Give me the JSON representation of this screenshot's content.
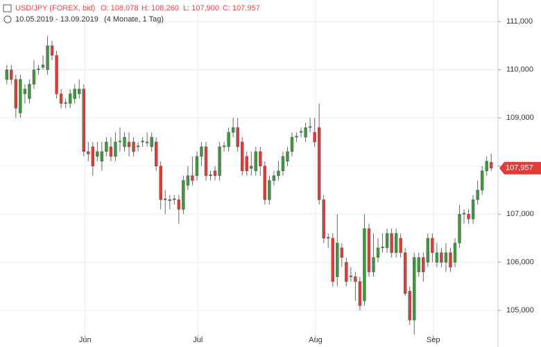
{
  "chart_data": {
    "type": "candlestick",
    "title": "USD/JPY (FOREX, bid)",
    "ohlc_labels": [
      "O: 108,078",
      "H: 108,260",
      "L: 107,900",
      "C: 107,957"
    ],
    "date_range": "10.05.2019 - 13.09.2019",
    "duration": "(4 Monate, 1 Tag)",
    "open": [
      109.8,
      110.0,
      109.8,
      109.1,
      109.5,
      109.4,
      109.7,
      110.0,
      110.05,
      110.0,
      110.5,
      110.3,
      109.5,
      109.3,
      109.3,
      109.4,
      109.5,
      109.6,
      108.3,
      108.4,
      108.2,
      108.1,
      108.3,
      108.4,
      108.2,
      108.5,
      108.4,
      108.5,
      108.5,
      108.4,
      108.5,
      108.5,
      108.4,
      108.5,
      108.0,
      107.3,
      107.3,
      107.3,
      107.3,
      107.1,
      107.6,
      107.8,
      107.8,
      108.2,
      108.4,
      107.8,
      107.9,
      107.8,
      108.4,
      108.4,
      108.7,
      108.8,
      108.5,
      108.2,
      107.95,
      107.9,
      108.3,
      108.0,
      107.3,
      107.7,
      107.8,
      107.9,
      108.1,
      108.3,
      108.6,
      108.7,
      108.6,
      108.8,
      108.7,
      108.8,
      107.3,
      106.5,
      106.5,
      105.7,
      106.3,
      106.0,
      105.7,
      105.7,
      105.6,
      105.2,
      106.7,
      105.8,
      106.1,
      106.3,
      106.3,
      106.6,
      106.2,
      106.5,
      106.2,
      105.4,
      104.8,
      105.8,
      106.1,
      106.0,
      106.5,
      106.0,
      106.2,
      106.0,
      106.2,
      106.0,
      106.4,
      107.0,
      107.0,
      106.9,
      107.3,
      107.5,
      107.9,
      108.078
    ],
    "high": [
      110.1,
      110.1,
      109.9,
      109.9,
      109.7,
      109.8,
      110.2,
      110.1,
      110.3,
      110.7,
      110.6,
      110.4,
      109.6,
      109.4,
      109.6,
      109.7,
      109.8,
      109.7,
      108.5,
      108.5,
      108.5,
      108.5,
      108.6,
      108.6,
      108.7,
      108.8,
      108.7,
      108.7,
      108.6,
      108.5,
      108.6,
      108.7,
      108.7,
      108.6,
      108.1,
      107.5,
      107.4,
      107.4,
      107.4,
      107.8,
      108.0,
      108.2,
      108.3,
      108.5,
      108.5,
      107.9,
      108.0,
      108.5,
      108.5,
      108.8,
      109.0,
      109.0,
      108.6,
      108.3,
      108.3,
      108.4,
      108.4,
      108.1,
      107.8,
      107.9,
      108.1,
      108.3,
      108.4,
      108.7,
      108.7,
      108.8,
      108.9,
      109.0,
      109.0,
      109.3,
      107.4,
      106.6,
      106.6,
      107.0,
      106.4,
      106.1,
      105.9,
      105.8,
      105.7,
      107.0,
      106.8,
      106.6,
      106.5,
      106.6,
      106.7,
      106.7,
      106.7,
      106.6,
      106.3,
      105.5,
      106.2,
      106.2,
      106.2,
      106.6,
      106.6,
      106.4,
      106.3,
      106.4,
      106.3,
      106.5,
      107.2,
      107.1,
      107.1,
      107.4,
      107.7,
      108.0,
      108.2,
      108.26
    ],
    "low": [
      109.7,
      109.7,
      109.0,
      109.0,
      109.3,
      109.3,
      109.6,
      109.9,
      110.0,
      109.9,
      110.2,
      109.4,
      109.2,
      109.2,
      109.2,
      109.3,
      109.4,
      108.2,
      108.1,
      107.8,
      108.1,
      107.9,
      108.2,
      108.1,
      108.1,
      108.3,
      108.3,
      108.2,
      108.2,
      108.3,
      108.4,
      108.4,
      108.3,
      107.9,
      107.1,
      107.0,
      107.1,
      107.2,
      106.8,
      107.0,
      107.5,
      107.6,
      107.7,
      108.0,
      107.7,
      107.7,
      107.7,
      107.7,
      108.3,
      108.3,
      108.6,
      108.3,
      107.8,
      107.8,
      107.8,
      107.8,
      107.8,
      107.2,
      107.2,
      107.6,
      107.7,
      107.8,
      108.0,
      108.2,
      108.5,
      108.6,
      108.5,
      108.7,
      108.4,
      107.2,
      106.4,
      106.3,
      105.5,
      105.5,
      105.9,
      105.5,
      105.6,
      105.2,
      105.0,
      105.1,
      105.7,
      105.7,
      106.0,
      106.2,
      106.2,
      106.1,
      106.1,
      106.1,
      105.3,
      104.7,
      104.5,
      105.7,
      105.6,
      105.9,
      106.0,
      105.9,
      105.9,
      105.8,
      105.8,
      105.9,
      106.3,
      106.8,
      106.8,
      106.8,
      107.2,
      107.4,
      107.8,
      107.9
    ],
    "close": [
      110.0,
      109.8,
      109.2,
      109.8,
      109.6,
      109.7,
      110.0,
      110.02,
      110.1,
      110.5,
      110.3,
      109.5,
      109.3,
      109.32,
      109.5,
      109.6,
      109.6,
      108.3,
      108.25,
      108.0,
      108.3,
      108.3,
      108.5,
      108.2,
      108.5,
      108.52,
      108.6,
      108.4,
      108.3,
      108.42,
      108.52,
      108.48,
      108.6,
      108.0,
      107.3,
      107.32,
      107.28,
      107.32,
      107.1,
      107.7,
      107.8,
      107.7,
      108.2,
      108.4,
      107.8,
      107.82,
      107.8,
      108.4,
      108.42,
      108.7,
      108.8,
      108.4,
      107.9,
      107.9,
      108.0,
      108.3,
      108.0,
      107.3,
      107.7,
      107.8,
      107.9,
      108.2,
      108.3,
      108.6,
      108.62,
      108.72,
      108.8,
      108.82,
      108.5,
      107.3,
      106.5,
      106.52,
      105.6,
      106.4,
      106.1,
      105.6,
      105.72,
      105.6,
      105.1,
      106.7,
      105.8,
      106.1,
      106.3,
      106.32,
      106.6,
      106.2,
      106.6,
      106.2,
      105.35,
      104.8,
      106.1,
      106.1,
      105.8,
      106.5,
      106.2,
      106.2,
      106.0,
      106.2,
      105.9,
      106.4,
      107.0,
      107.02,
      106.9,
      107.3,
      107.5,
      107.9,
      108.1,
      107.957
    ],
    "up_color": "#3c9a3c",
    "down_color": "#e23b3b",
    "last_value": {
      "value": 107.957,
      "label": "107,957"
    },
    "xlim": [
      -1.5,
      108.5
    ],
    "xticks": [
      {
        "value": 17.3,
        "label": "Jun"
      },
      {
        "value": 42.2,
        "label": "Jul"
      },
      {
        "value": 68.2,
        "label": "Aug"
      },
      {
        "value": 94.2,
        "label": "Sep"
      }
    ],
    "ylim": [
      104.24,
      111.45
    ],
    "yticks": [
      {
        "value": 105,
        "label": "105,000"
      },
      {
        "value": 106,
        "label": "106,000"
      },
      {
        "value": 107,
        "label": "107,000"
      },
      {
        "value": 108,
        "label": "108,000"
      },
      {
        "value": 109,
        "label": "109,000"
      },
      {
        "value": 110,
        "label": "110,000"
      },
      {
        "value": 111,
        "label": "111,000"
      }
    ],
    "grid": true
  }
}
